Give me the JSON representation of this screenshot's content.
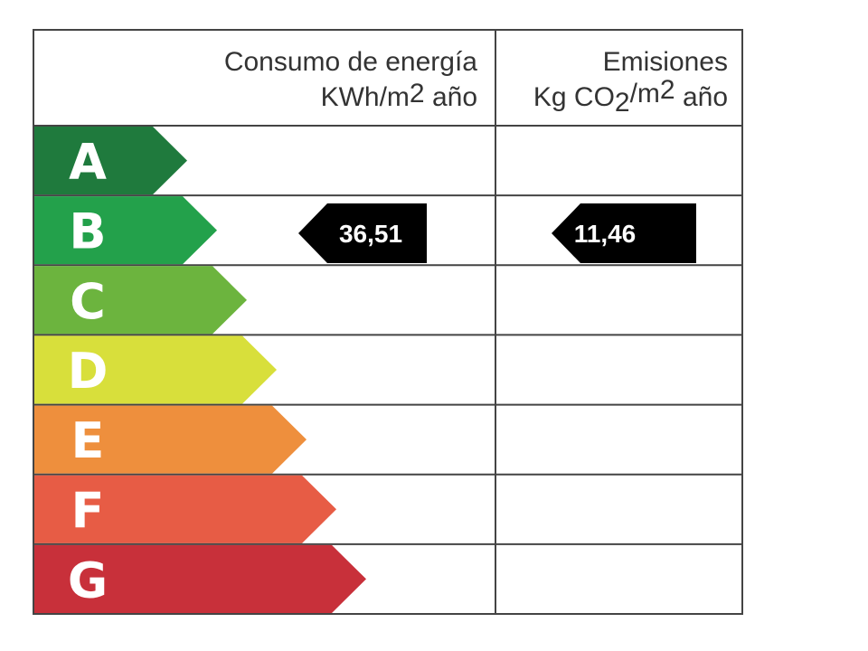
{
  "header": {
    "consumption": {
      "line1": "Consumo de energía",
      "line2": [
        "KWh/m",
        "2",
        " año"
      ]
    },
    "emissions": {
      "line1": "Emisiones",
      "line2": [
        "Kg CO",
        "2",
        "/m",
        "2",
        " año"
      ]
    }
  },
  "ratings": [
    {
      "letter": "A",
      "color": "#1f7a3d"
    },
    {
      "letter": "B",
      "color": "#23a14b"
    },
    {
      "letter": "C",
      "color": "#6cb43e"
    },
    {
      "letter": "D",
      "color": "#d8df3b"
    },
    {
      "letter": "E",
      "color": "#ee8f3d"
    },
    {
      "letter": "F",
      "color": "#e75c45"
    },
    {
      "letter": "G",
      "color": "#c8303a"
    }
  ],
  "indicators": {
    "consumption": "36,51",
    "emissions": "11,46"
  }
}
